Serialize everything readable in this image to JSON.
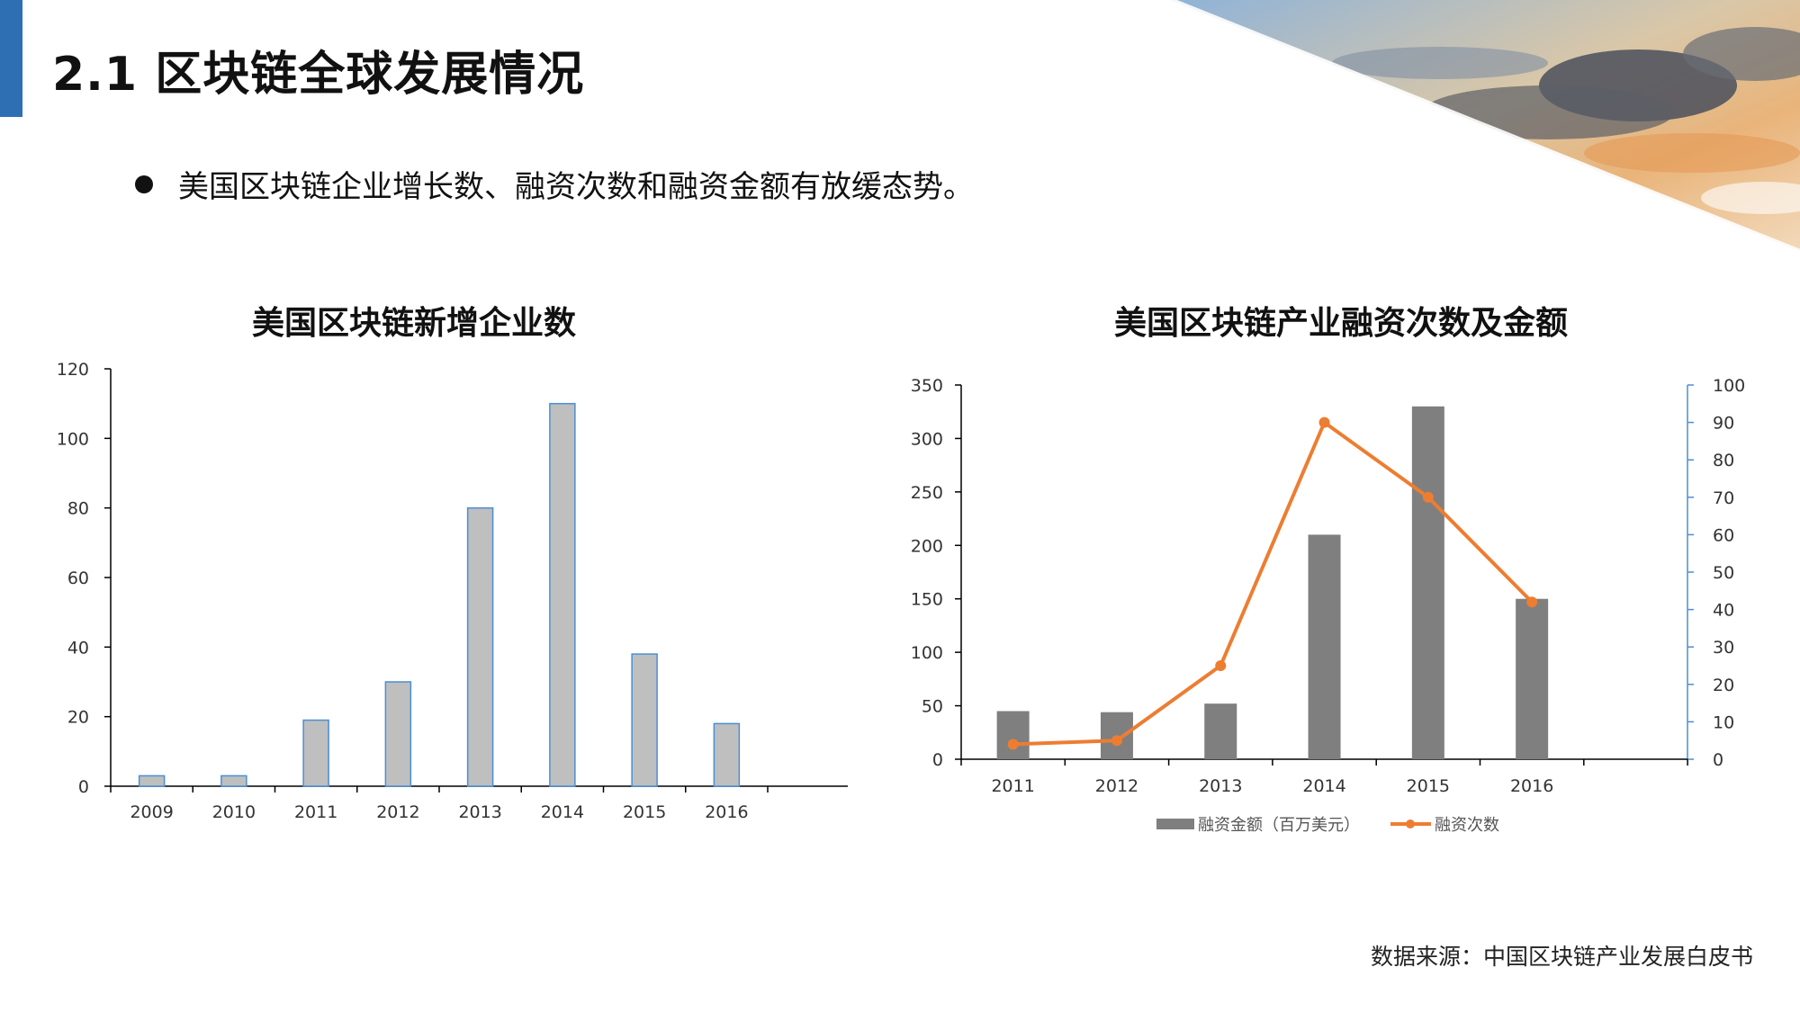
{
  "slide": {
    "title": "2.1 区块链全球发展情况",
    "bullet": "美国区块链企业增长数、融资次数和融资金额有放缓态势。",
    "source": "数据来源：中国区块链产业发展白皮书"
  },
  "colors": {
    "accent": "#2e6fb4",
    "bar_gray": "#bfbfbf",
    "bar_outline": "#4a8fd6",
    "bar_dark": "#7f7f7f",
    "line_orange": "#ed7d31",
    "axis": "#000000",
    "right_axis": "#4a8fd6"
  },
  "chart_data": [
    {
      "type": "bar",
      "title": "美国区块链新增企业数",
      "categories": [
        "2009",
        "2010",
        "2011",
        "2012",
        "2013",
        "2014",
        "2015",
        "2016"
      ],
      "values": [
        3,
        3,
        19,
        30,
        80,
        110,
        38,
        18
      ],
      "ylim": [
        0,
        120
      ],
      "yticks": [
        0,
        20,
        40,
        60,
        80,
        100,
        120
      ],
      "grid": false
    },
    {
      "type": "bar",
      "title": "美国区块链产业融资次数及金额",
      "categories": [
        "2011",
        "2012",
        "2013",
        "2014",
        "2015",
        "2016"
      ],
      "series": [
        {
          "name": "融资金额（百万美元）",
          "type": "bar",
          "axis": "left",
          "values": [
            45,
            44,
            52,
            210,
            330,
            150
          ]
        },
        {
          "name": "融资次数",
          "type": "line",
          "axis": "right",
          "values": [
            4,
            5,
            25,
            90,
            70,
            42
          ]
        }
      ],
      "ylim_left": [
        0,
        350
      ],
      "yticks_left": [
        0,
        50,
        100,
        150,
        200,
        250,
        300,
        350
      ],
      "ylim_right": [
        0,
        100
      ],
      "yticks_right": [
        0,
        10,
        20,
        30,
        40,
        50,
        60,
        70,
        80,
        90,
        100
      ],
      "legend": "bottom",
      "grid": false
    }
  ]
}
